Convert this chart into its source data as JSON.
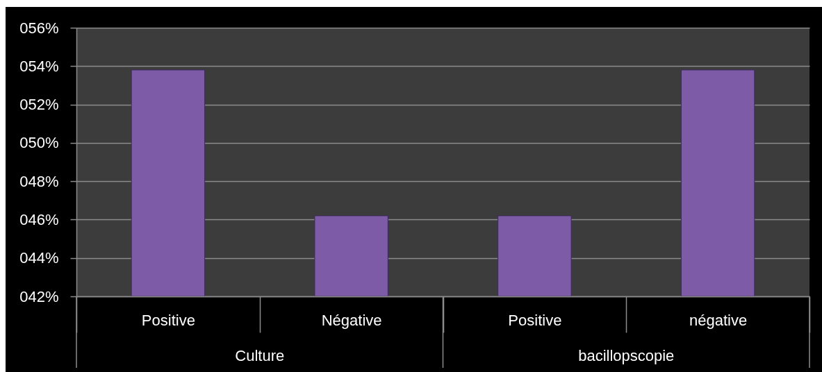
{
  "chart_data": {
    "type": "bar",
    "categories": [
      "Positive",
      "Négative",
      "Positive",
      "négative"
    ],
    "values": [
      53.8,
      46.2,
      46.2,
      53.8
    ],
    "color": "#7d5ba6",
    "ylim": [
      42,
      56
    ],
    "yticks": [
      {
        "value": 42,
        "label": "042%"
      },
      {
        "value": 44,
        "label": "044%"
      },
      {
        "value": 46,
        "label": "046%"
      },
      {
        "value": 48,
        "label": "048%"
      },
      {
        "value": 50,
        "label": "050%"
      },
      {
        "value": 52,
        "label": "052%"
      },
      {
        "value": 54,
        "label": "054%"
      },
      {
        "value": 56,
        "label": "056%"
      }
    ],
    "grid": "y",
    "annotations": [
      "Culture",
      "bacillopscopie"
    ]
  }
}
